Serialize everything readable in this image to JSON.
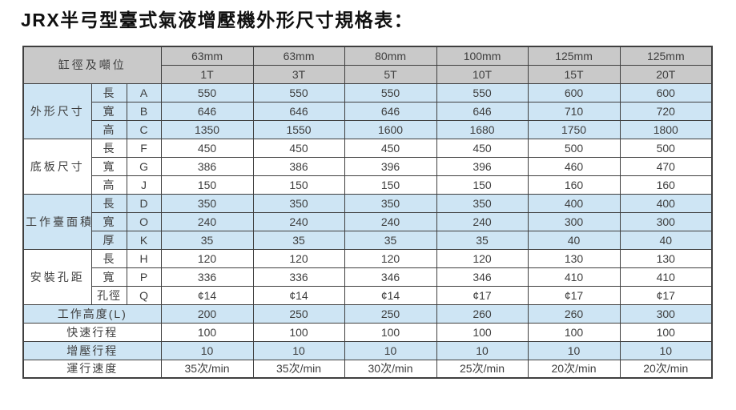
{
  "title": "JRX半弓型臺式氣液增壓機外形尺寸規格表：",
  "colors": {
    "header_bg": "#c9c9c9",
    "stripe_blue": "#cee5f4",
    "stripe_white": "#ffffff",
    "border": "#3f3f3f",
    "text": "#3e3e3e",
    "title_text": "#101010"
  },
  "table": {
    "corner_label": "缸徑及噸位",
    "columns": [
      {
        "bore": "63mm",
        "tonnage": "1T"
      },
      {
        "bore": "63mm",
        "tonnage": "3T"
      },
      {
        "bore": "80mm",
        "tonnage": "5T"
      },
      {
        "bore": "100mm",
        "tonnage": "10T"
      },
      {
        "bore": "125mm",
        "tonnage": "15T"
      },
      {
        "bore": "125mm",
        "tonnage": "20T"
      }
    ],
    "groups": [
      {
        "label": "外形尺寸",
        "stripe": "blue",
        "rows": [
          {
            "dim": "長",
            "code": "A",
            "values": [
              "550",
              "550",
              "550",
              "550",
              "600",
              "600"
            ]
          },
          {
            "dim": "寬",
            "code": "B",
            "values": [
              "646",
              "646",
              "646",
              "646",
              "710",
              "720"
            ]
          },
          {
            "dim": "高",
            "code": "C",
            "values": [
              "1350",
              "1550",
              "1600",
              "1680",
              "1750",
              "1800"
            ]
          }
        ]
      },
      {
        "label": "底板尺寸",
        "stripe": "white",
        "rows": [
          {
            "dim": "長",
            "code": "F",
            "values": [
              "450",
              "450",
              "450",
              "450",
              "500",
              "500"
            ]
          },
          {
            "dim": "寬",
            "code": "G",
            "values": [
              "386",
              "386",
              "396",
              "396",
              "460",
              "470"
            ]
          },
          {
            "dim": "高",
            "code": "J",
            "values": [
              "150",
              "150",
              "150",
              "150",
              "160",
              "160"
            ]
          }
        ]
      },
      {
        "label": "工作臺面積",
        "stripe": "blue",
        "rows": [
          {
            "dim": "長",
            "code": "D",
            "values": [
              "350",
              "350",
              "350",
              "350",
              "400",
              "400"
            ]
          },
          {
            "dim": "寬",
            "code": "O",
            "values": [
              "240",
              "240",
              "240",
              "240",
              "300",
              "300"
            ]
          },
          {
            "dim": "厚",
            "code": "K",
            "values": [
              "35",
              "35",
              "35",
              "35",
              "40",
              "40"
            ]
          }
        ]
      },
      {
        "label": "安裝孔距",
        "stripe": "white",
        "rows": [
          {
            "dim": "長",
            "code": "H",
            "values": [
              "120",
              "120",
              "120",
              "120",
              "130",
              "130"
            ]
          },
          {
            "dim": "寬",
            "code": "P",
            "values": [
              "336",
              "336",
              "346",
              "346",
              "410",
              "410"
            ]
          },
          {
            "dim": "孔徑",
            "code": "Q",
            "values": [
              "¢14",
              "¢14",
              "¢14",
              "¢17",
              "¢17",
              "¢17"
            ]
          }
        ]
      }
    ],
    "footer_rows": [
      {
        "label": "工作高度(L)",
        "stripe": "blue",
        "values": [
          "200",
          "250",
          "250",
          "260",
          "260",
          "300"
        ]
      },
      {
        "label": "快速行程",
        "stripe": "white",
        "values": [
          "100",
          "100",
          "100",
          "100",
          "100",
          "100"
        ]
      },
      {
        "label": "增壓行程",
        "stripe": "blue",
        "values": [
          "10",
          "10",
          "10",
          "10",
          "10",
          "10"
        ]
      },
      {
        "label": "運行速度",
        "stripe": "white",
        "values": [
          "35次/min",
          "35次/min",
          "30次/min",
          "25次/min",
          "20次/min",
          "20次/min"
        ]
      }
    ]
  }
}
